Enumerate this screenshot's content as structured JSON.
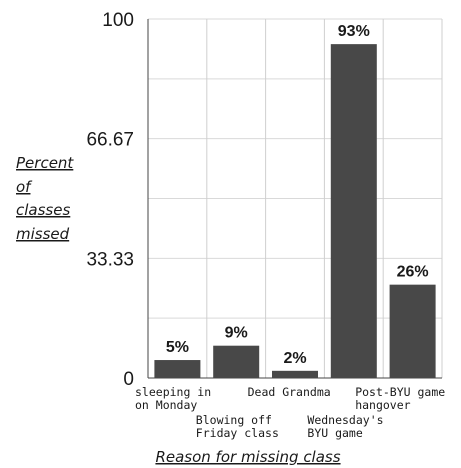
{
  "chart_data": {
    "type": "bar",
    "categories": [
      [
        "sleeping in",
        "on Monday"
      ],
      [
        "Blowing off",
        "Friday class"
      ],
      [
        "Dead Grandma"
      ],
      [
        "Wednesday's",
        "BYU game"
      ],
      [
        "Post-BYU game",
        "hangover"
      ]
    ],
    "values": [
      5,
      9,
      2,
      93,
      26
    ],
    "data_labels": [
      "5%",
      "9%",
      "2%",
      "93%",
      "26%"
    ],
    "ylabel": [
      "Percent",
      "of",
      "classes",
      "missed"
    ],
    "xlabel": "Reason for missing class",
    "yticks": [
      "0",
      "33.33",
      "66.67",
      "100"
    ],
    "ylim": [
      0,
      100
    ],
    "grid": true,
    "bar_color": "#484848"
  }
}
